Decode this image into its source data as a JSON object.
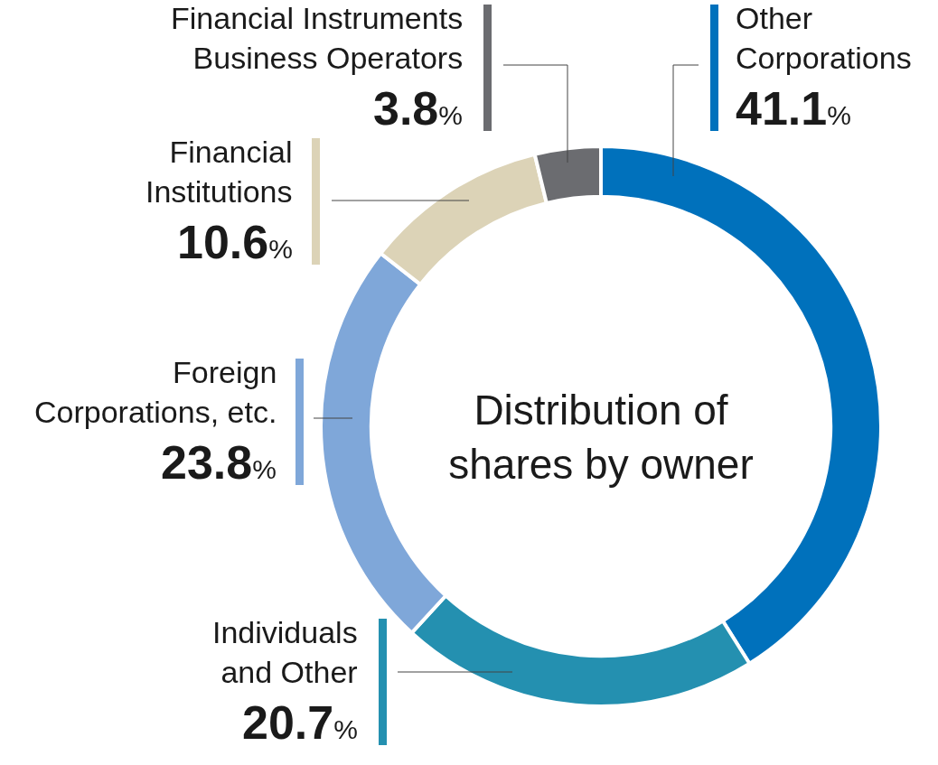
{
  "chart_data": {
    "type": "donut",
    "title": "Distribution of shares by owner",
    "categories": [
      "Other Corporations",
      "Individuals and Other",
      "Foreign Corporations, etc.",
      "Financial Institutions",
      "Financial Instruments Business Operators"
    ],
    "values": [
      41.1,
      20.7,
      23.8,
      10.6,
      3.8
    ],
    "colors": [
      "#0071bc",
      "#2490b0",
      "#7fa7d9",
      "#dcd3b7",
      "#6b6c70"
    ],
    "value_labels": [
      "41.1%",
      "20.7%",
      "23.8%",
      "10.6%",
      "3.8%"
    ],
    "legend": false
  }
}
